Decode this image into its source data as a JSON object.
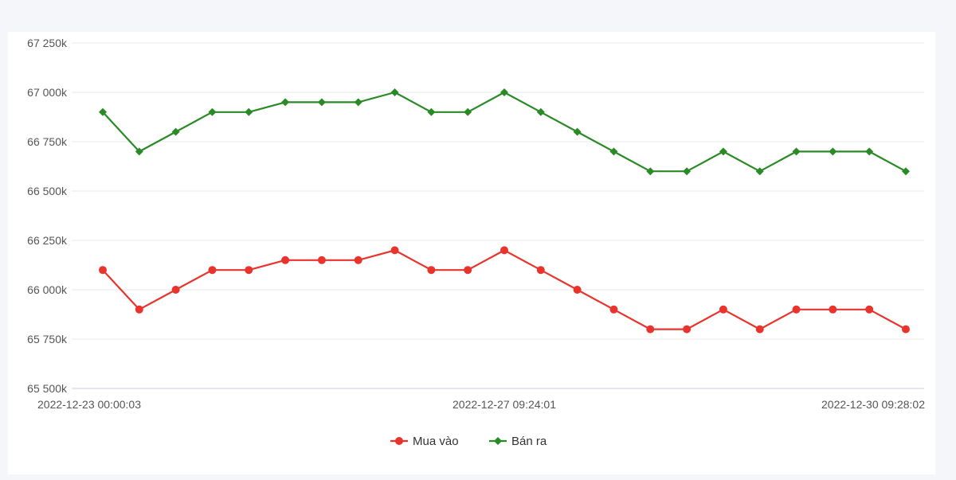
{
  "chart_data": {
    "type": "line",
    "title": "",
    "xlabel": "",
    "ylabel": "",
    "ylim": [
      65500,
      67250
    ],
    "y_ticks": [
      {
        "value": 65500,
        "label": "65 500k"
      },
      {
        "value": 65750,
        "label": "65 750k"
      },
      {
        "value": 66000,
        "label": "66 000k"
      },
      {
        "value": 66250,
        "label": "66 250k"
      },
      {
        "value": 66500,
        "label": "66 500k"
      },
      {
        "value": 66750,
        "label": "66 750k"
      },
      {
        "value": 67000,
        "label": "67 000k"
      },
      {
        "value": 67250,
        "label": "67 250k"
      }
    ],
    "x_tick_labels": [
      {
        "index": 0,
        "label": "2022-12-23 00:00:03"
      },
      {
        "index": 11,
        "label": "2022-12-27 09:24:01"
      },
      {
        "index": 22,
        "label": "2022-12-30 09:28:02"
      }
    ],
    "point_count": 23,
    "grid": true,
    "legend_position": "bottom",
    "series": [
      {
        "name": "Mua vào",
        "color": "#e8342c",
        "marker": "circle",
        "values": [
          66100,
          65900,
          66000,
          66100,
          66100,
          66150,
          66150,
          66150,
          66200,
          66100,
          66100,
          66200,
          66100,
          66000,
          65900,
          65800,
          65800,
          65900,
          65800,
          65900,
          65900,
          65900,
          65800
        ]
      },
      {
        "name": "Bán ra",
        "color": "#2a8a26",
        "marker": "diamond",
        "values": [
          66900,
          66700,
          66800,
          66900,
          66900,
          66950,
          66950,
          66950,
          67000,
          66900,
          66900,
          67000,
          66900,
          66800,
          66700,
          66600,
          66600,
          66700,
          66600,
          66700,
          66700,
          66700,
          66600
        ]
      }
    ]
  }
}
